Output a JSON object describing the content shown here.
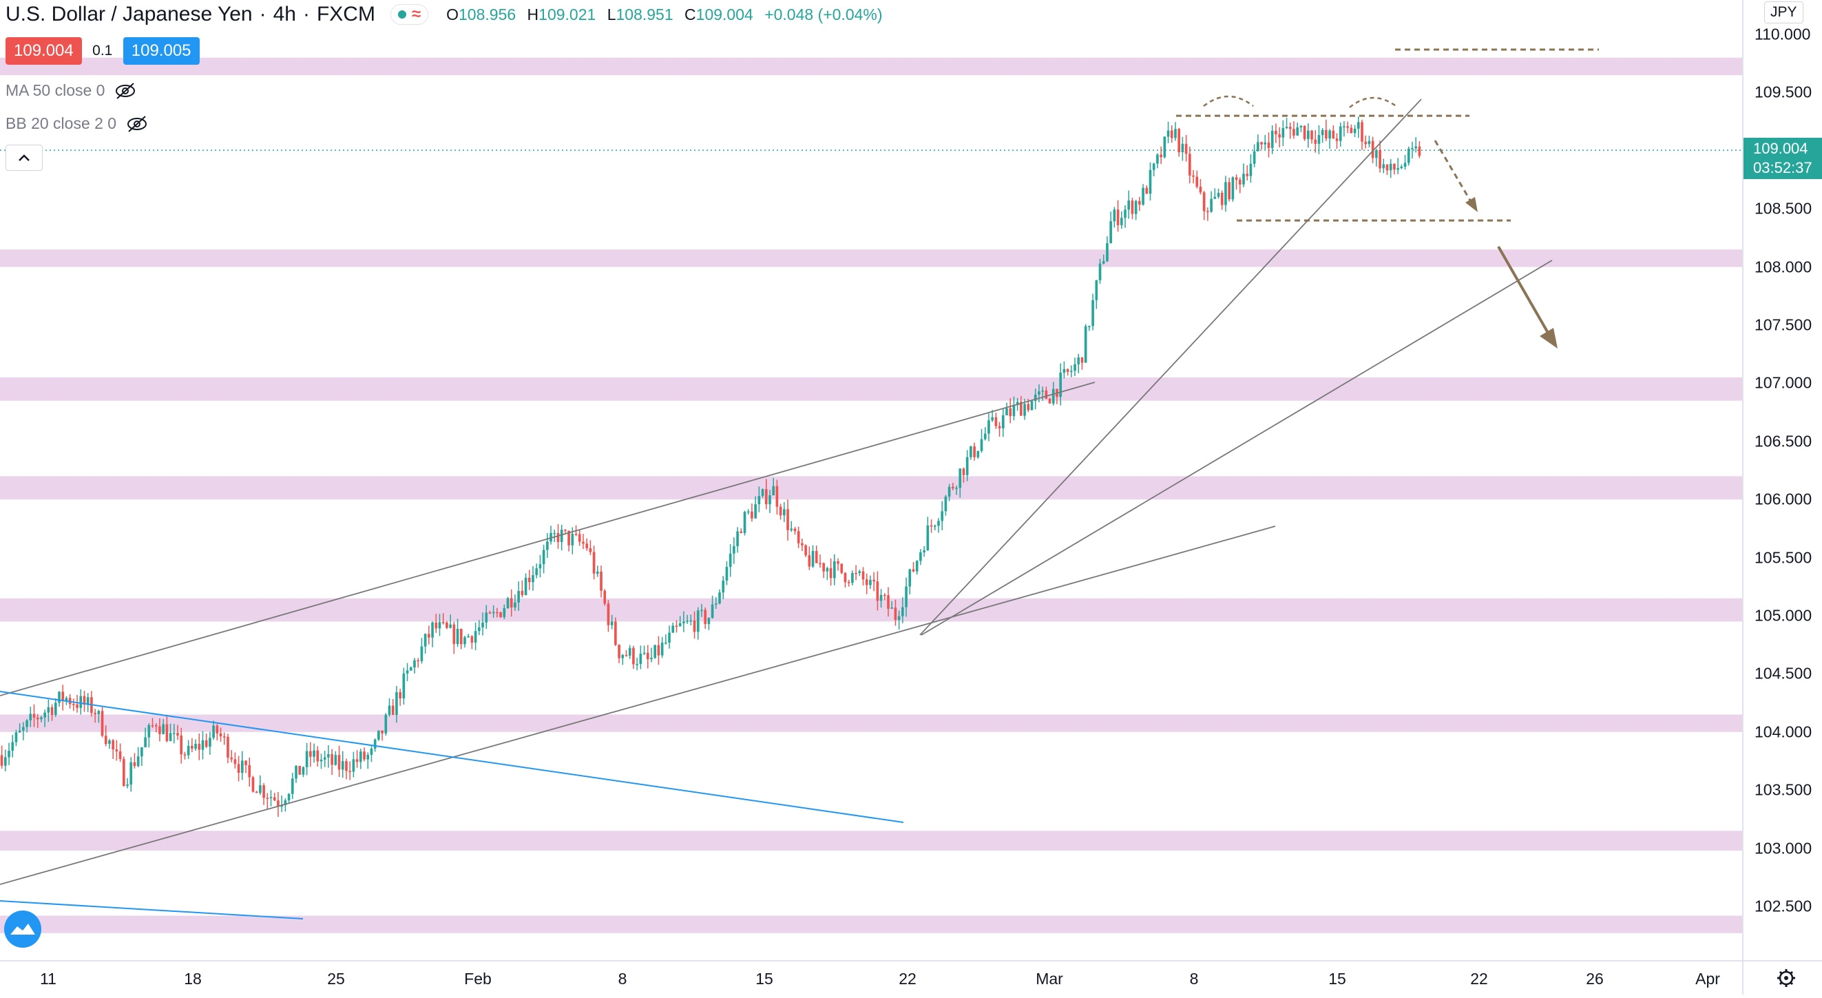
{
  "header": {
    "symbol": "U.S. Dollar / Japanese Yen",
    "sep1": "·",
    "interval": "4h",
    "sep2": "·",
    "source": "FXCM",
    "ohlc": {
      "o_label": "O",
      "o": "108.956",
      "h_label": "H",
      "h": "109.021",
      "l_label": "L",
      "l": "108.951",
      "c_label": "C",
      "c": "109.004",
      "change": "+0.048 (+0.04%)"
    }
  },
  "trade": {
    "bid": "109.004",
    "spread": "0.1",
    "ask": "109.005"
  },
  "indicators": [
    {
      "label": "MA 50 close 0",
      "icon": "eye-crossed-icon"
    },
    {
      "label": "BB 20 close 2 0",
      "icon": "eye-crossed-icon"
    }
  ],
  "price_axis": {
    "currency": "JPY",
    "ticks": [
      "110.000",
      "109.500",
      "109.000",
      "108.500",
      "108.000",
      "107.500",
      "107.000",
      "106.500",
      "106.000",
      "105.500",
      "105.000",
      "104.500",
      "104.000",
      "103.500",
      "103.000",
      "102.500"
    ],
    "current_price": "109.004",
    "countdown": "03:52:37"
  },
  "time_axis": {
    "ticks": [
      "11",
      "18",
      "25",
      "Feb",
      "8",
      "15",
      "22",
      "Mar",
      "8",
      "15",
      "22",
      "26",
      "Apr"
    ]
  },
  "colors": {
    "up": "#26a69a",
    "down": "#ef5350",
    "zone": "#e6cbe8",
    "trend": "#787878",
    "blue_trend": "#2196f3",
    "annotation": "#8b7355"
  },
  "chart_data": {
    "type": "candlestick",
    "title": "U.S. Dollar / Japanese Yen · 4h · FXCM",
    "ylim": [
      102.25,
      110.25
    ],
    "x_labels": [
      "11",
      "18",
      "25",
      "Feb",
      "8",
      "15",
      "22",
      "Mar",
      "8",
      "15",
      "22",
      "26",
      "Apr"
    ],
    "path": [
      [
        0,
        103.8
      ],
      [
        1,
        104.1
      ],
      [
        2,
        104.3
      ],
      [
        3,
        104.2
      ],
      [
        4,
        103.6
      ],
      [
        5,
        104.1
      ],
      [
        6,
        103.8
      ],
      [
        7,
        104.0
      ],
      [
        8,
        103.6
      ],
      [
        9,
        103.4
      ],
      [
        10,
        103.8
      ],
      [
        11,
        103.7
      ],
      [
        12,
        103.8
      ],
      [
        13,
        104.4
      ],
      [
        14,
        104.9
      ],
      [
        15,
        104.8
      ],
      [
        16,
        105.0
      ],
      [
        17,
        105.3
      ],
      [
        18,
        105.7
      ],
      [
        19,
        105.6
      ],
      [
        20,
        104.7
      ],
      [
        21,
        104.6
      ],
      [
        22,
        104.9
      ],
      [
        23,
        105.0
      ],
      [
        24,
        105.8
      ],
      [
        25,
        106.1
      ],
      [
        26,
        105.5
      ],
      [
        27,
        105.4
      ],
      [
        28,
        105.3
      ],
      [
        29,
        105.0
      ],
      [
        30,
        105.7
      ],
      [
        31,
        106.2
      ],
      [
        32,
        106.6
      ],
      [
        33,
        106.8
      ],
      [
        34,
        106.9
      ],
      [
        35,
        107.2
      ],
      [
        36,
        108.4
      ],
      [
        37,
        108.6
      ],
      [
        38,
        109.2
      ],
      [
        39,
        108.5
      ],
      [
        40,
        108.7
      ],
      [
        41,
        109.1
      ],
      [
        42,
        109.2
      ],
      [
        43,
        109.1
      ],
      [
        44,
        109.2
      ],
      [
        45,
        108.8
      ],
      [
        46,
        109.0
      ]
    ],
    "zones": [
      [
        109.65,
        109.8
      ],
      [
        108.0,
        108.15
      ],
      [
        106.85,
        107.05
      ],
      [
        106.0,
        106.2
      ],
      [
        104.95,
        105.15
      ],
      [
        104.0,
        104.15
      ],
      [
        102.98,
        103.15
      ],
      [
        102.27,
        102.42
      ]
    ],
    "resistance_levels": [
      109.3,
      108.4,
      109.87
    ]
  }
}
